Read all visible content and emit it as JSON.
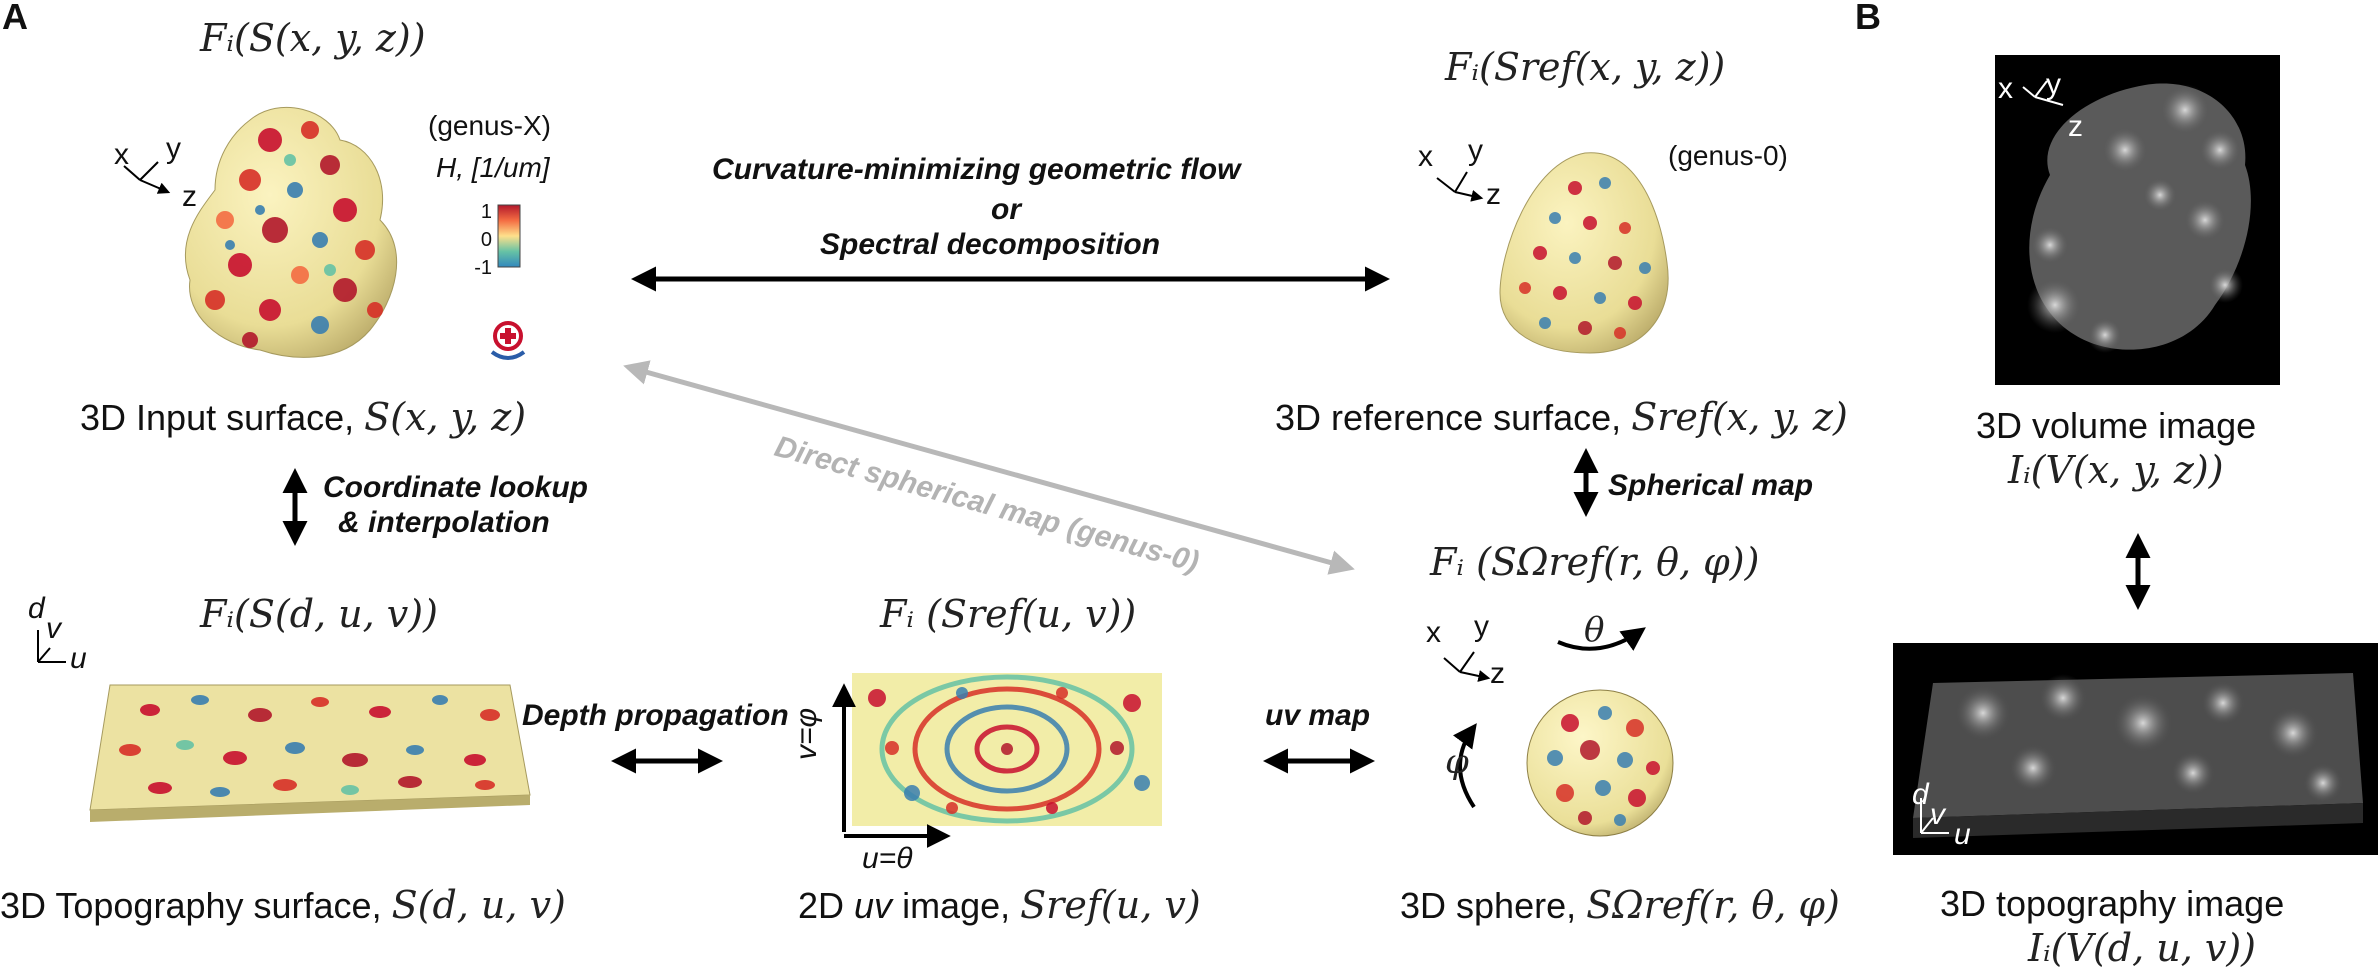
{
  "panels": {
    "a": "A",
    "b": "B"
  },
  "colors": {
    "red": "#c8102e",
    "yellow": "#f4eea0",
    "blue": "#3a7fb0",
    "grey_arrow": "#b8b8b8"
  },
  "input_surface": {
    "formula": "Fᵢ(S(x, y, z))",
    "genus": "(genus-X)",
    "curvature_label": "H, [1/um]",
    "colorbar_ticks": [
      "1",
      "0",
      "-1"
    ],
    "caption_text": "3D Input surface,",
    "caption_math": "S(x, y, z)",
    "axes": {
      "x": "x",
      "y": "y",
      "z": "z"
    }
  },
  "reference_surface": {
    "formula": "Fᵢ(Sref(x, y, z))",
    "genus": "(genus-0)",
    "caption_text": "3D reference surface,",
    "caption_math": "Sref(x, y, z)",
    "axes": {
      "x": "x",
      "y": "y",
      "z": "z"
    }
  },
  "transforms": {
    "top_line1": "Curvature-minimizing geometric flow",
    "top_line2": "or",
    "top_line3": "Spectral decomposition",
    "direct": "Direct spherical map (genus-0)",
    "coord_line1": "Coordinate lookup",
    "coord_line2": "& interpolation",
    "spherical": "Spherical map",
    "depth": "Depth propagation",
    "uvmap": "uv map"
  },
  "topography_surface": {
    "formula": "Fᵢ(S(d, u, v))",
    "caption_text": "3D Topography surface,",
    "caption_math": "S(d, u, v)",
    "axes": {
      "d": "d",
      "v": "v",
      "u": "u"
    }
  },
  "uv_image": {
    "formula": "Fᵢ (Sref(u, v))",
    "caption_text_pre": "2D ",
    "caption_text_uv": "uv",
    "caption_text_post": " image,",
    "caption_math": "Sref(u, v)",
    "axis_u": "u=θ",
    "axis_v": "v=φ"
  },
  "sphere": {
    "formula": "Fᵢ (SΩref(r, θ, φ))",
    "caption_text": "3D sphere,",
    "caption_math": "SΩref(r, θ, φ)",
    "theta": "θ",
    "phi": "φ",
    "axes": {
      "x": "x",
      "y": "y",
      "z": "z"
    }
  },
  "panel_b": {
    "volume_caption": "3D volume image",
    "volume_math": "Iᵢ(V(x, y, z))",
    "topo_caption": "3D topography image",
    "topo_math": "Iᵢ(V(d, u, v))",
    "axes": {
      "x": "x",
      "y": "y",
      "z": "z",
      "d": "d",
      "v": "v",
      "u": "u"
    }
  }
}
